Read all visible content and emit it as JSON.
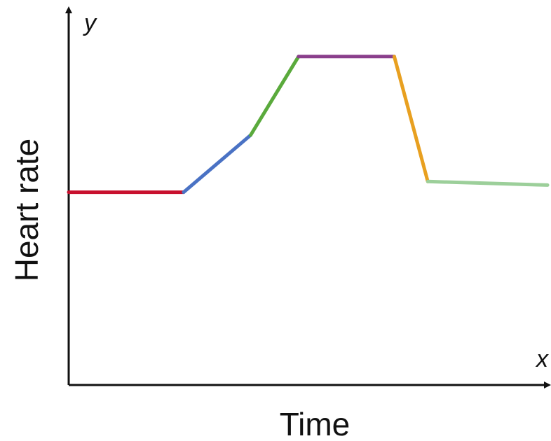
{
  "chart_data": {
    "type": "line",
    "title": "",
    "xlabel": "Time",
    "ylabel": "Heart rate",
    "x_axis_symbol": "x",
    "y_axis_symbol": "y",
    "xlim": [
      0,
      10
    ],
    "ylim": [
      0,
      10
    ],
    "grid": false,
    "legend": "none",
    "segments": [
      {
        "color": "#c8102e",
        "points": [
          [
            0,
            5.4
          ],
          [
            2.4,
            5.4
          ]
        ]
      },
      {
        "color": "#4a72c4",
        "points": [
          [
            2.4,
            5.4
          ],
          [
            3.8,
            7.0
          ]
        ]
      },
      {
        "color": "#5aaa3c",
        "points": [
          [
            3.8,
            7.0
          ],
          [
            4.8,
            9.2
          ]
        ]
      },
      {
        "color": "#8a3f8c",
        "points": [
          [
            4.8,
            9.2
          ],
          [
            6.8,
            9.2
          ]
        ]
      },
      {
        "color": "#e8a020",
        "points": [
          [
            6.8,
            9.2
          ],
          [
            7.5,
            5.7
          ]
        ]
      },
      {
        "color": "#9ccf9a",
        "points": [
          [
            7.5,
            5.7
          ],
          [
            10.0,
            5.6
          ]
        ]
      }
    ]
  }
}
